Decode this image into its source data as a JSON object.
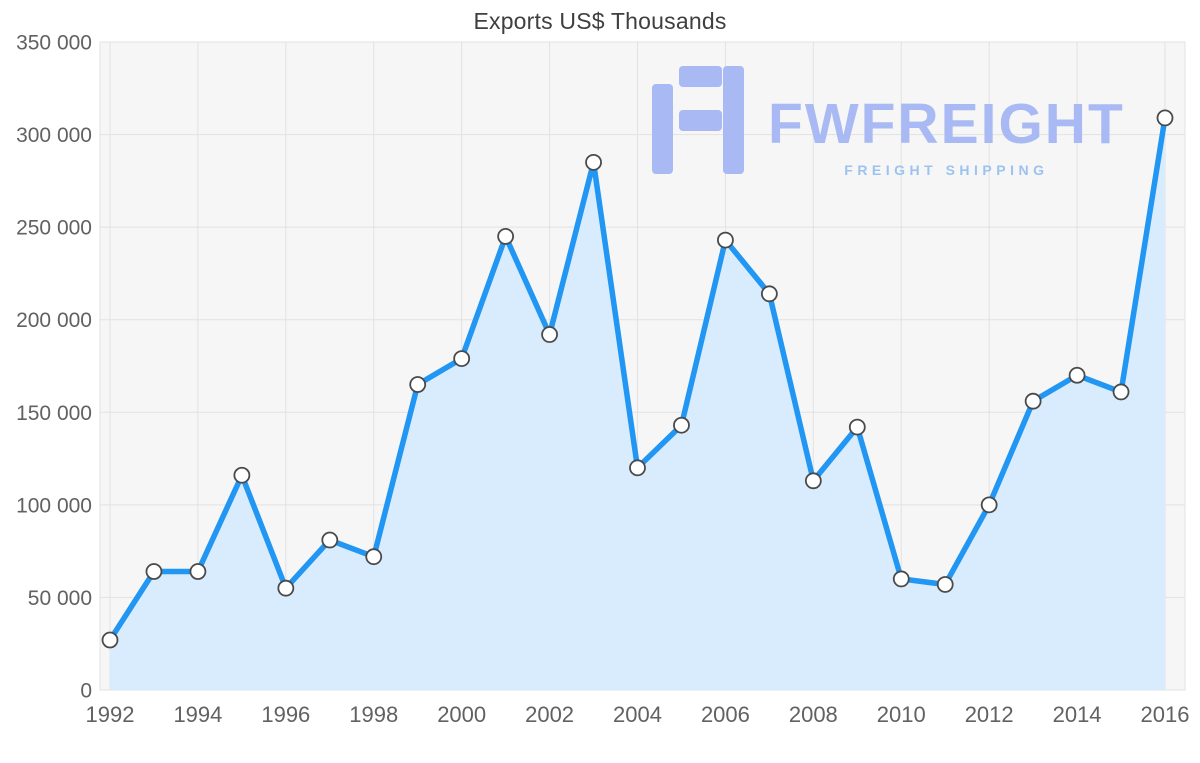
{
  "chart_data": {
    "type": "area",
    "title": "Exports US$ Thousands",
    "x": [
      1992,
      1993,
      1994,
      1995,
      1996,
      1997,
      1998,
      1999,
      2000,
      2001,
      2002,
      2003,
      2004,
      2005,
      2006,
      2007,
      2008,
      2009,
      2010,
      2011,
      2012,
      2013,
      2014,
      2015,
      2016
    ],
    "values": [
      27000,
      64000,
      64000,
      116000,
      55000,
      81000,
      72000,
      165000,
      179000,
      245000,
      192000,
      285000,
      120000,
      143000,
      243000,
      214000,
      113000,
      142000,
      60000,
      57000,
      100000,
      156000,
      170000,
      161000,
      309000
    ],
    "ylim": [
      0,
      350000
    ],
    "y_tick_step": 50000,
    "y_tick_labels": [
      "0",
      "50 000",
      "100 000",
      "150 000",
      "200 000",
      "250 000",
      "300 000",
      "350 000"
    ],
    "x_tick_interval": 2,
    "x_tick_labels": [
      "1992",
      "1994",
      "1996",
      "1998",
      "2000",
      "2002",
      "2004",
      "2006",
      "2008",
      "2010",
      "2012",
      "2014",
      "2016"
    ],
    "grid": true,
    "legend": "none",
    "marker": "circle",
    "xlabel": "",
    "ylabel": ""
  },
  "watermark": {
    "brand": "FWFREIGHT",
    "tagline": "FREIGHT SHIPPING"
  },
  "colors": {
    "background": "#ffffff",
    "plot_bg": "#f6f6f6",
    "plot_border": "#e2e2e2",
    "grid": "#e2e2e2",
    "line": "#2196f3",
    "area_fill": "#d9ecfd",
    "marker_fill": "#ffffff",
    "marker_stroke": "#4a4a4a",
    "axis_text": "#616161",
    "title_text": "#3f3f3f",
    "brand": "#a8b9f3",
    "tagline": "#9cc3f0"
  }
}
